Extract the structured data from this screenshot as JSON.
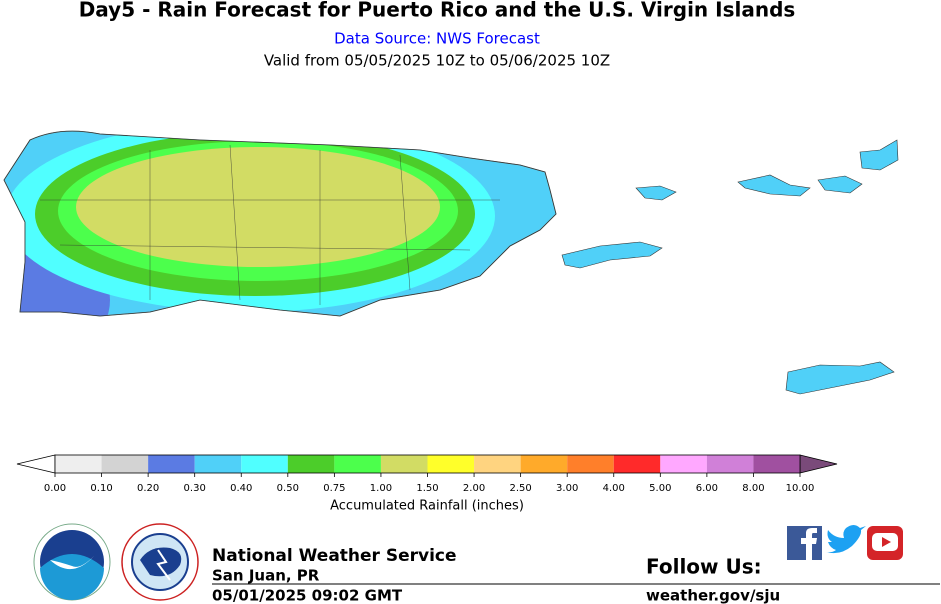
{
  "header": {
    "title": "Day5 - Rain Forecast for Puerto Rico and the U.S. Virgin Islands",
    "source": "Data Source: NWS Forecast",
    "valid": "Valid from 05/05/2025 10Z to 05/06/2025 10Z"
  },
  "legend": {
    "title": "Accumulated Rainfall (inches)",
    "labels": [
      "0.00",
      "0.10",
      "0.20",
      "0.30",
      "0.40",
      "0.50",
      "0.75",
      "1.00",
      "1.50",
      "2.00",
      "2.50",
      "3.00",
      "4.00",
      "5.00",
      "6.00",
      "8.00",
      "10.00"
    ],
    "colors": [
      "#eeeeee",
      "#d3d3d3",
      "#5b7be3",
      "#50d0f8",
      "#50ffff",
      "#4ccd2a",
      "#4cff4c",
      "#d2dc64",
      "#ffff2a",
      "#ffd480",
      "#ffaa2a",
      "#ff7f2a",
      "#ff2a2a",
      "#ffa8ff",
      "#d080d8",
      "#a050a0"
    ],
    "under_color": "#ffffff",
    "over_color": "#7a4a7a"
  },
  "footer": {
    "office": "National Weather Service",
    "location": "San Juan, PR",
    "issued": "05/01/2025 09:02 GMT",
    "follow": "Follow Us:",
    "url": "weather.gov/sju"
  }
}
